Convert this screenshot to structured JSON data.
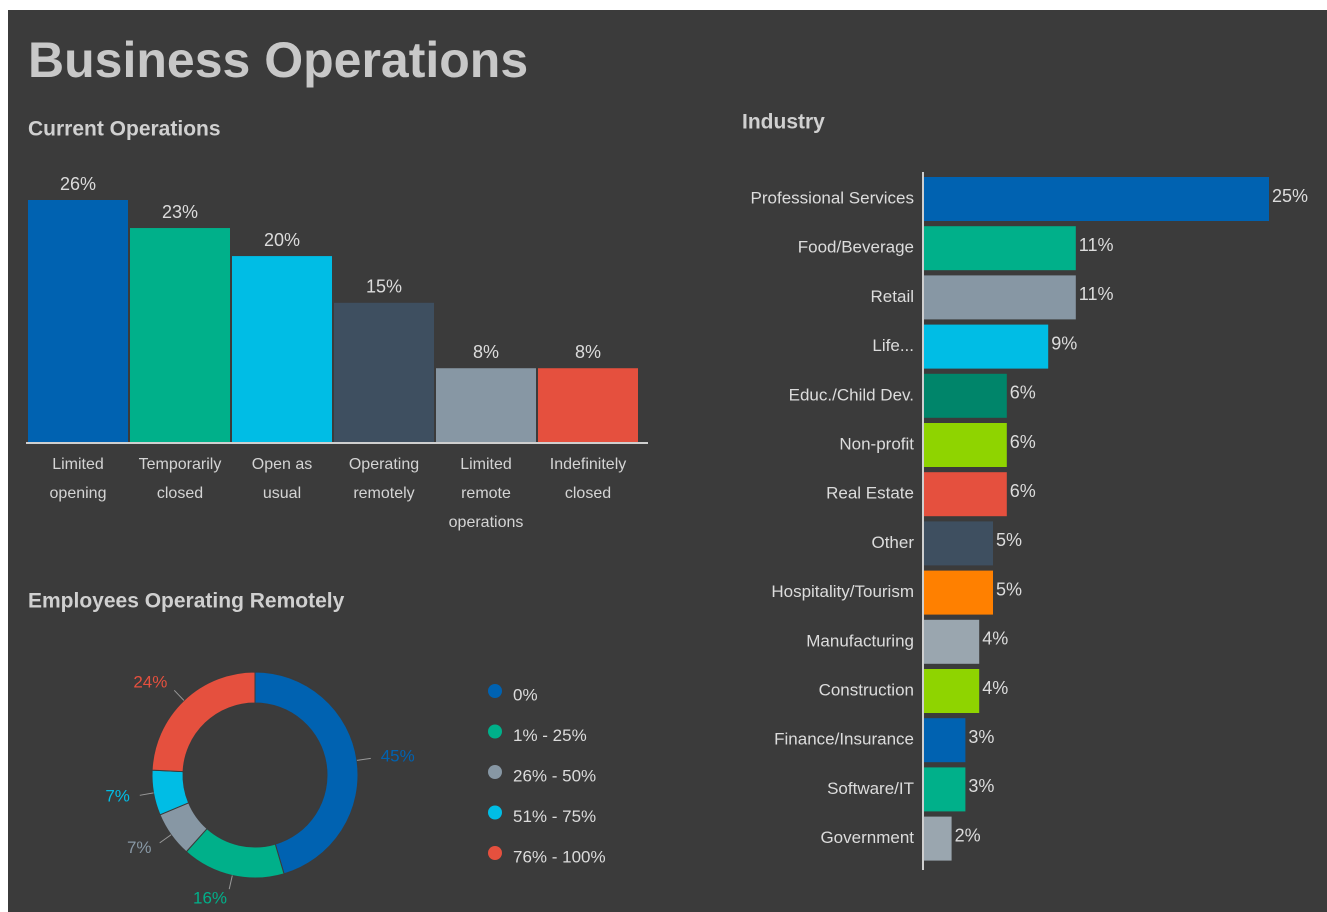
{
  "title": "Business Operations",
  "chart_data": [
    {
      "type": "bar",
      "title": "Current Operations",
      "categories": [
        "Limited opening",
        "Temporarily closed",
        "Open as usual",
        "Operating remotely",
        "Limited remote operations",
        "Indefinitely closed"
      ],
      "values": [
        26,
        23,
        20,
        15,
        8,
        8
      ],
      "value_labels": [
        "26%",
        "23%",
        "20%",
        "15%",
        "8%",
        "8%"
      ],
      "colors": [
        "#0062b1",
        "#00b08a",
        "#00bde5",
        "#3e4f60",
        "#8797a4",
        "#e5503e"
      ]
    },
    {
      "type": "donut",
      "title": "Employees Operating Remotely",
      "categories": [
        "0%",
        "1% - 25%",
        "26% - 50%",
        "51% - 75%",
        "76% - 100%"
      ],
      "values": [
        45,
        16,
        7,
        7,
        24
      ],
      "value_labels": [
        "45%",
        "16%",
        "7%",
        "7%",
        "24%"
      ],
      "colors": [
        "#0062b1",
        "#00b08a",
        "#8797a4",
        "#00bde5",
        "#e5503e"
      ]
    },
    {
      "type": "hbar",
      "title": "Industry",
      "categories": [
        "Professional Services",
        "Food/Beverage",
        "Retail",
        "Life...",
        "Educ./Child Dev.",
        "Non-profit",
        "Real Estate",
        "Other",
        "Hospitality/Tourism",
        "Manufacturing",
        "Construction",
        "Finance/Insurance",
        "Software/IT",
        "Government"
      ],
      "values": [
        25,
        11,
        11,
        9,
        6,
        6,
        6,
        5,
        5,
        4,
        4,
        3,
        3,
        2
      ],
      "value_labels": [
        "25%",
        "11%",
        "11%",
        "9%",
        "6%",
        "6%",
        "6%",
        "5%",
        "5%",
        "4%",
        "4%",
        "3%",
        "3%",
        "2%"
      ],
      "colors": [
        "#0062b1",
        "#00b08a",
        "#8797a4",
        "#00bde5",
        "#00856a",
        "#8fd400",
        "#e5503e",
        "#3e4f60",
        "#ff8000",
        "#9aa6af",
        "#8fd400",
        "#0062b1",
        "#00b08a",
        "#9aa6af"
      ]
    }
  ]
}
